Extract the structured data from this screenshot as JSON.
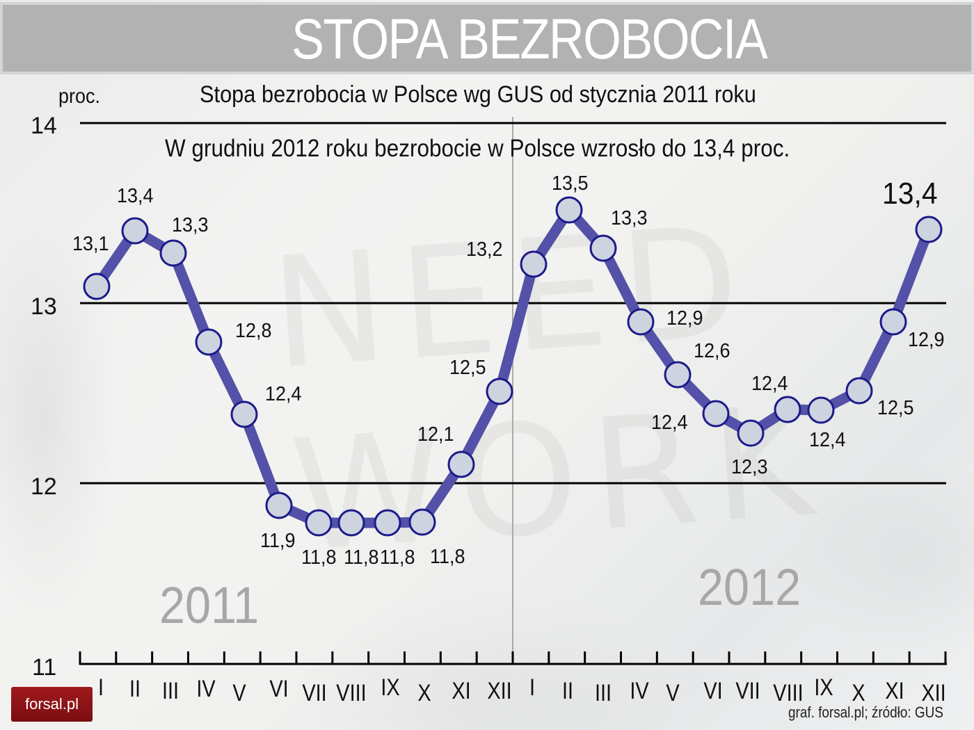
{
  "header": {
    "title": "STOPA BEZROBOCIA"
  },
  "chart": {
    "unit_label": "proc.",
    "subtitle": "Stopa bezrobocia w Polsce wg GUS od stycznia 2011 roku",
    "headline": "W grudniu 2012 roku bezrobocie w Polsce wzrosło do 13,4 proc.",
    "y_ticks": [
      "14",
      "13",
      "12",
      "11"
    ],
    "years": [
      "2011",
      "2012"
    ],
    "x_labels": [
      "I",
      "II",
      "III",
      "IV",
      "V",
      "VI",
      "VII",
      "VIII",
      "IX",
      "X",
      "XI",
      "XII",
      "I",
      "II",
      "III",
      "IV",
      "V",
      "VI",
      "VII",
      "VIII",
      "IX",
      "X",
      "XI",
      "XII"
    ],
    "point_labels": [
      "13,1",
      "13,4",
      "13,3",
      "12,8",
      "12,4",
      "11,9",
      "11,8",
      "11,8",
      "11,8",
      "11,8",
      "12,1",
      "12,5",
      "13,2",
      "13,5",
      "13,3",
      "12,9",
      "12,6",
      "12,4",
      "12,3",
      "12,4",
      "12,4",
      "12,5",
      "12,9",
      "13,4"
    ],
    "line_color": "#5352a8",
    "marker_fill": "#cdd3df",
    "marker_stroke": "#1c1a8a",
    "watermark": [
      "NEED",
      "WORK"
    ]
  },
  "footer": {
    "logo": "forsal.pl",
    "credit": "graf. forsal.pl; źródło: GUS"
  },
  "chart_data": {
    "type": "line",
    "title": "STOPA BEZROBOCIA",
    "subtitle": "Stopa bezrobocia w Polsce wg GUS od stycznia 2011 roku",
    "annotation": "W grudniu 2012 roku bezrobocie w Polsce wzrosło do 13,4 proc.",
    "xlabel": "",
    "ylabel": "proc.",
    "ylim": [
      11,
      14
    ],
    "yticks": [
      11,
      12,
      13,
      14
    ],
    "grid": true,
    "legend": null,
    "groups": [
      {
        "label": "2011",
        "months": [
          "I",
          "II",
          "III",
          "IV",
          "V",
          "VI",
          "VII",
          "VIII",
          "IX",
          "X",
          "XI",
          "XII"
        ]
      },
      {
        "label": "2012",
        "months": [
          "I",
          "II",
          "III",
          "IV",
          "V",
          "VI",
          "VII",
          "VIII",
          "IX",
          "X",
          "XI",
          "XII"
        ]
      }
    ],
    "categories": [
      "I 2011",
      "II 2011",
      "III 2011",
      "IV 2011",
      "V 2011",
      "VI 2011",
      "VII 2011",
      "VIII 2011",
      "IX 2011",
      "X 2011",
      "XI 2011",
      "XII 2011",
      "I 2012",
      "II 2012",
      "III 2012",
      "IV 2012",
      "V 2012",
      "VI 2012",
      "VII 2012",
      "VIII 2012",
      "IX 2012",
      "X 2012",
      "XI 2012",
      "XII 2012"
    ],
    "series": [
      {
        "name": "Stopa bezrobocia (proc.)",
        "values": [
          13.1,
          13.4,
          13.3,
          12.8,
          12.4,
          11.9,
          11.8,
          11.8,
          11.8,
          11.8,
          12.1,
          12.5,
          13.2,
          13.5,
          13.3,
          12.9,
          12.6,
          12.4,
          12.3,
          12.4,
          12.4,
          12.5,
          12.9,
          13.4
        ]
      }
    ],
    "source": "graf. forsal.pl; źródło: GUS"
  }
}
